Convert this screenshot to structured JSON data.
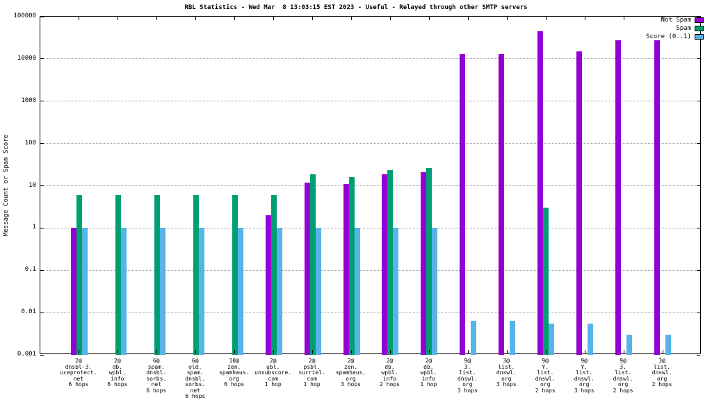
{
  "chart_data": {
    "type": "bar",
    "title": "RBL Statistics - Wed Mar  8 13:03:15 EST 2023 - Useful - Relayed through other SMTP servers",
    "ylabel": "Message Count or Spam Score",
    "y_scale": "log",
    "ylim": [
      0.001,
      100000
    ],
    "y_ticks": [
      {
        "v": 100000,
        "label": "100000"
      },
      {
        "v": 10000,
        "label": "10000"
      },
      {
        "v": 1000,
        "label": "1000"
      },
      {
        "v": 100,
        "label": "100"
      },
      {
        "v": 10,
        "label": "10"
      },
      {
        "v": 1,
        "label": "1"
      },
      {
        "v": 0.1,
        "label": "0.1"
      },
      {
        "v": 0.01,
        "label": "0.01"
      },
      {
        "v": 0.001,
        "label": "0.001"
      }
    ],
    "grid": "horizontal-dotted",
    "legend_position": "top-right",
    "categories": [
      [
        "2@",
        "dnsbl-3.",
        "uceprotect.",
        "net",
        "6 hops"
      ],
      [
        "2@",
        "db.",
        "wpbl.",
        "info",
        "6 hops"
      ],
      [
        "6@",
        "spam.",
        "dnsbl.",
        "sorbs.",
        "net",
        "6 hops"
      ],
      [
        "6@",
        "old.",
        "spam.",
        "dnsbl.",
        "sorbs.",
        "net",
        "6 hops"
      ],
      [
        "10@",
        "zen.",
        "spamhaus.",
        "org",
        "6 hops"
      ],
      [
        "2@",
        "ubl.",
        "unsubscore.",
        "com",
        "1 hop"
      ],
      [
        "2@",
        "psbl.",
        "surriel.",
        "com",
        "1 hop"
      ],
      [
        "2@",
        "zen.",
        "spamhaus.",
        "org",
        "3 hops"
      ],
      [
        "2@",
        "db.",
        "wpbl.",
        "info",
        "2 hops"
      ],
      [
        "2@",
        "db.",
        "wpbl.",
        "info",
        "1 hop"
      ],
      [
        "9@",
        "3.",
        "list.",
        "dnswl.",
        "org",
        "3 hops"
      ],
      [
        "3@",
        "list.",
        "dnswl.",
        "org",
        "3 hops"
      ],
      [
        "9@",
        "Y.",
        "list.",
        "dnswl.",
        "org",
        "2 hops"
      ],
      [
        "9@",
        "Y.",
        "list.",
        "dnswl.",
        "org",
        "3 hops"
      ],
      [
        "9@",
        "3.",
        "list.",
        "dnswl.",
        "org",
        "2 hops"
      ],
      [
        "3@",
        "list.",
        "dnswl.",
        "org",
        "2 hops"
      ]
    ],
    "series": [
      {
        "name": "Not Spam",
        "color": "#9400d3",
        "values": [
          1,
          null,
          null,
          null,
          null,
          2,
          12,
          11,
          19,
          21,
          13000,
          13000,
          45000,
          15000,
          28000,
          28000
        ]
      },
      {
        "name": "Spam",
        "color": "#009e73",
        "values": [
          6,
          6,
          6,
          6,
          6,
          6,
          19,
          16,
          23,
          26,
          null,
          null,
          3,
          null,
          null,
          null
        ]
      },
      {
        "name": "Score (0..1)",
        "color": "#56b4e9",
        "values": [
          1,
          1,
          1,
          1,
          1,
          1,
          1,
          1,
          1,
          1,
          0.0065,
          0.0065,
          0.0055,
          0.0055,
          0.003,
          0.003
        ]
      }
    ]
  }
}
